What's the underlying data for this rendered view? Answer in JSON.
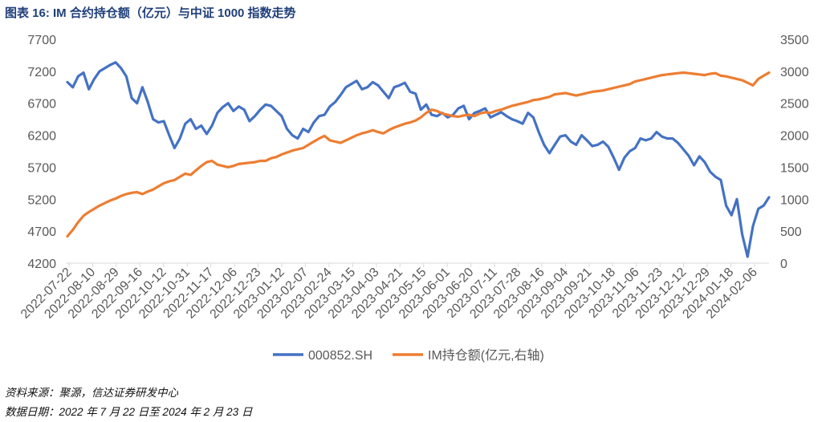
{
  "title": "图表 16:  IM 合约持仓额（亿元）与中证 1000 指数走势",
  "footer": {
    "source": "资料来源：聚源，信达证券研发中心",
    "date": "数据日期：2022 年 7 月 22 日至 2024 年 2 月 23 日"
  },
  "colors": {
    "blue": "#4472c4",
    "orange": "#ed7d31",
    "axis": "#d9d9d9",
    "tick_text": "#595959"
  },
  "chart_data": {
    "type": "line",
    "title": "IM 合约持仓额（亿元）与中证 1000 指数走势",
    "x_tick_labels": [
      "2022-07-22",
      "2022-08-10",
      "2022-08-29",
      "2022-09-16",
      "2022-10-12",
      "2022-10-31",
      "2022-11-17",
      "2022-12-06",
      "2022-12-23",
      "2023-01-12",
      "2023-02-07",
      "2023-02-24",
      "2023-03-15",
      "2023-04-03",
      "2023-04-21",
      "2023-05-15",
      "2023-06-01",
      "2023-06-20",
      "2023-07-11",
      "2023-07-28",
      "2023-08-16",
      "2023-09-04",
      "2023-09-21",
      "2023-10-18",
      "2023-11-06",
      "2023-11-23",
      "2023-12-12",
      "2023-12-29",
      "2024-01-18",
      "2024-02-06"
    ],
    "y_left": {
      "min": 4200,
      "max": 7700,
      "ticks": [
        "4200",
        "4700",
        "5200",
        "5700",
        "6200",
        "6700",
        "7200",
        "7700"
      ]
    },
    "y_right": {
      "min": 0,
      "max": 3500,
      "ticks": [
        "0",
        "500",
        "1000",
        "1500",
        "2000",
        "2500",
        "3000",
        "3500"
      ]
    },
    "legend": {
      "position": "bottom"
    },
    "series": [
      {
        "name": "000852.SH",
        "axis": "left",
        "color": "#4472c4",
        "values": [
          7030,
          6950,
          7120,
          7180,
          6920,
          7080,
          7200,
          7250,
          7300,
          7340,
          7250,
          7120,
          6780,
          6700,
          6950,
          6720,
          6450,
          6400,
          6420,
          6200,
          6000,
          6150,
          6380,
          6450,
          6300,
          6350,
          6220,
          6350,
          6550,
          6640,
          6700,
          6580,
          6650,
          6600,
          6420,
          6500,
          6600,
          6680,
          6660,
          6580,
          6500,
          6300,
          6200,
          6150,
          6300,
          6250,
          6400,
          6500,
          6520,
          6650,
          6720,
          6830,
          6950,
          7000,
          7050,
          6920,
          6950,
          7030,
          6980,
          6880,
          6780,
          6950,
          6980,
          7020,
          6880,
          6850,
          6600,
          6680,
          6520,
          6500,
          6550,
          6480,
          6520,
          6620,
          6660,
          6450,
          6550,
          6580,
          6620,
          6480,
          6520,
          6560,
          6500,
          6450,
          6420,
          6380,
          6550,
          6480,
          6250,
          6050,
          5920,
          6050,
          6180,
          6200,
          6100,
          6050,
          6200,
          6120,
          6030,
          6050,
          6100,
          6020,
          5850,
          5660,
          5850,
          5950,
          6000,
          6150,
          6120,
          6150,
          6250,
          6180,
          6150,
          6150,
          6080,
          5980,
          5880,
          5730,
          5870,
          5780,
          5630,
          5550,
          5500,
          5100,
          4950,
          5200,
          4650,
          4300,
          4780,
          5050,
          5100,
          5230
        ]
      },
      {
        "name": "IM持仓额(亿元,右轴)",
        "axis": "right",
        "color": "#ed7d31",
        "values": [
          420,
          520,
          640,
          740,
          800,
          850,
          900,
          940,
          980,
          1010,
          1050,
          1080,
          1100,
          1110,
          1080,
          1120,
          1150,
          1200,
          1250,
          1280,
          1300,
          1350,
          1400,
          1380,
          1450,
          1520,
          1580,
          1600,
          1540,
          1520,
          1500,
          1520,
          1550,
          1560,
          1570,
          1580,
          1600,
          1600,
          1640,
          1660,
          1700,
          1730,
          1760,
          1780,
          1800,
          1850,
          1900,
          1950,
          1990,
          1920,
          1900,
          1880,
          1920,
          1960,
          2000,
          2030,
          2050,
          2080,
          2050,
          2030,
          2080,
          2120,
          2150,
          2180,
          2200,
          2230,
          2280,
          2350,
          2400,
          2380,
          2340,
          2320,
          2300,
          2290,
          2310,
          2320,
          2300,
          2340,
          2360,
          2350,
          2380,
          2400,
          2430,
          2460,
          2480,
          2500,
          2520,
          2550,
          2560,
          2580,
          2600,
          2640,
          2650,
          2660,
          2640,
          2620,
          2640,
          2660,
          2680,
          2690,
          2700,
          2720,
          2740,
          2760,
          2780,
          2800,
          2840,
          2860,
          2880,
          2900,
          2920,
          2940,
          2950,
          2960,
          2970,
          2980,
          2970,
          2960,
          2950,
          2940,
          2960,
          2970,
          2930,
          2920,
          2900,
          2880,
          2860,
          2820,
          2780,
          2880,
          2930,
          2980
        ]
      }
    ]
  }
}
